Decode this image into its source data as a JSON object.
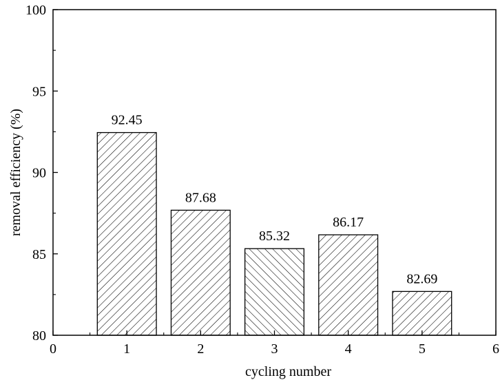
{
  "chart_data": {
    "type": "bar",
    "title": "",
    "xlabel": "cycling number",
    "ylabel": "removal efficiency (%)",
    "xlim": [
      0,
      6
    ],
    "ylim": [
      80,
      100
    ],
    "x_ticks": [
      "0",
      "1",
      "2",
      "3",
      "4",
      "5",
      "6"
    ],
    "y_ticks": [
      "80",
      "85",
      "90",
      "95",
      "100"
    ],
    "categories": [
      1,
      2,
      3,
      4,
      5
    ],
    "values": [
      92.45,
      87.68,
      85.32,
      86.17,
      82.69
    ],
    "data_labels": [
      "92.45",
      "87.68",
      "85.32",
      "86.17",
      "82.69"
    ],
    "bar_fill": "hatched",
    "bar_edge_color": "#000000",
    "grid": false,
    "legend": "none"
  }
}
